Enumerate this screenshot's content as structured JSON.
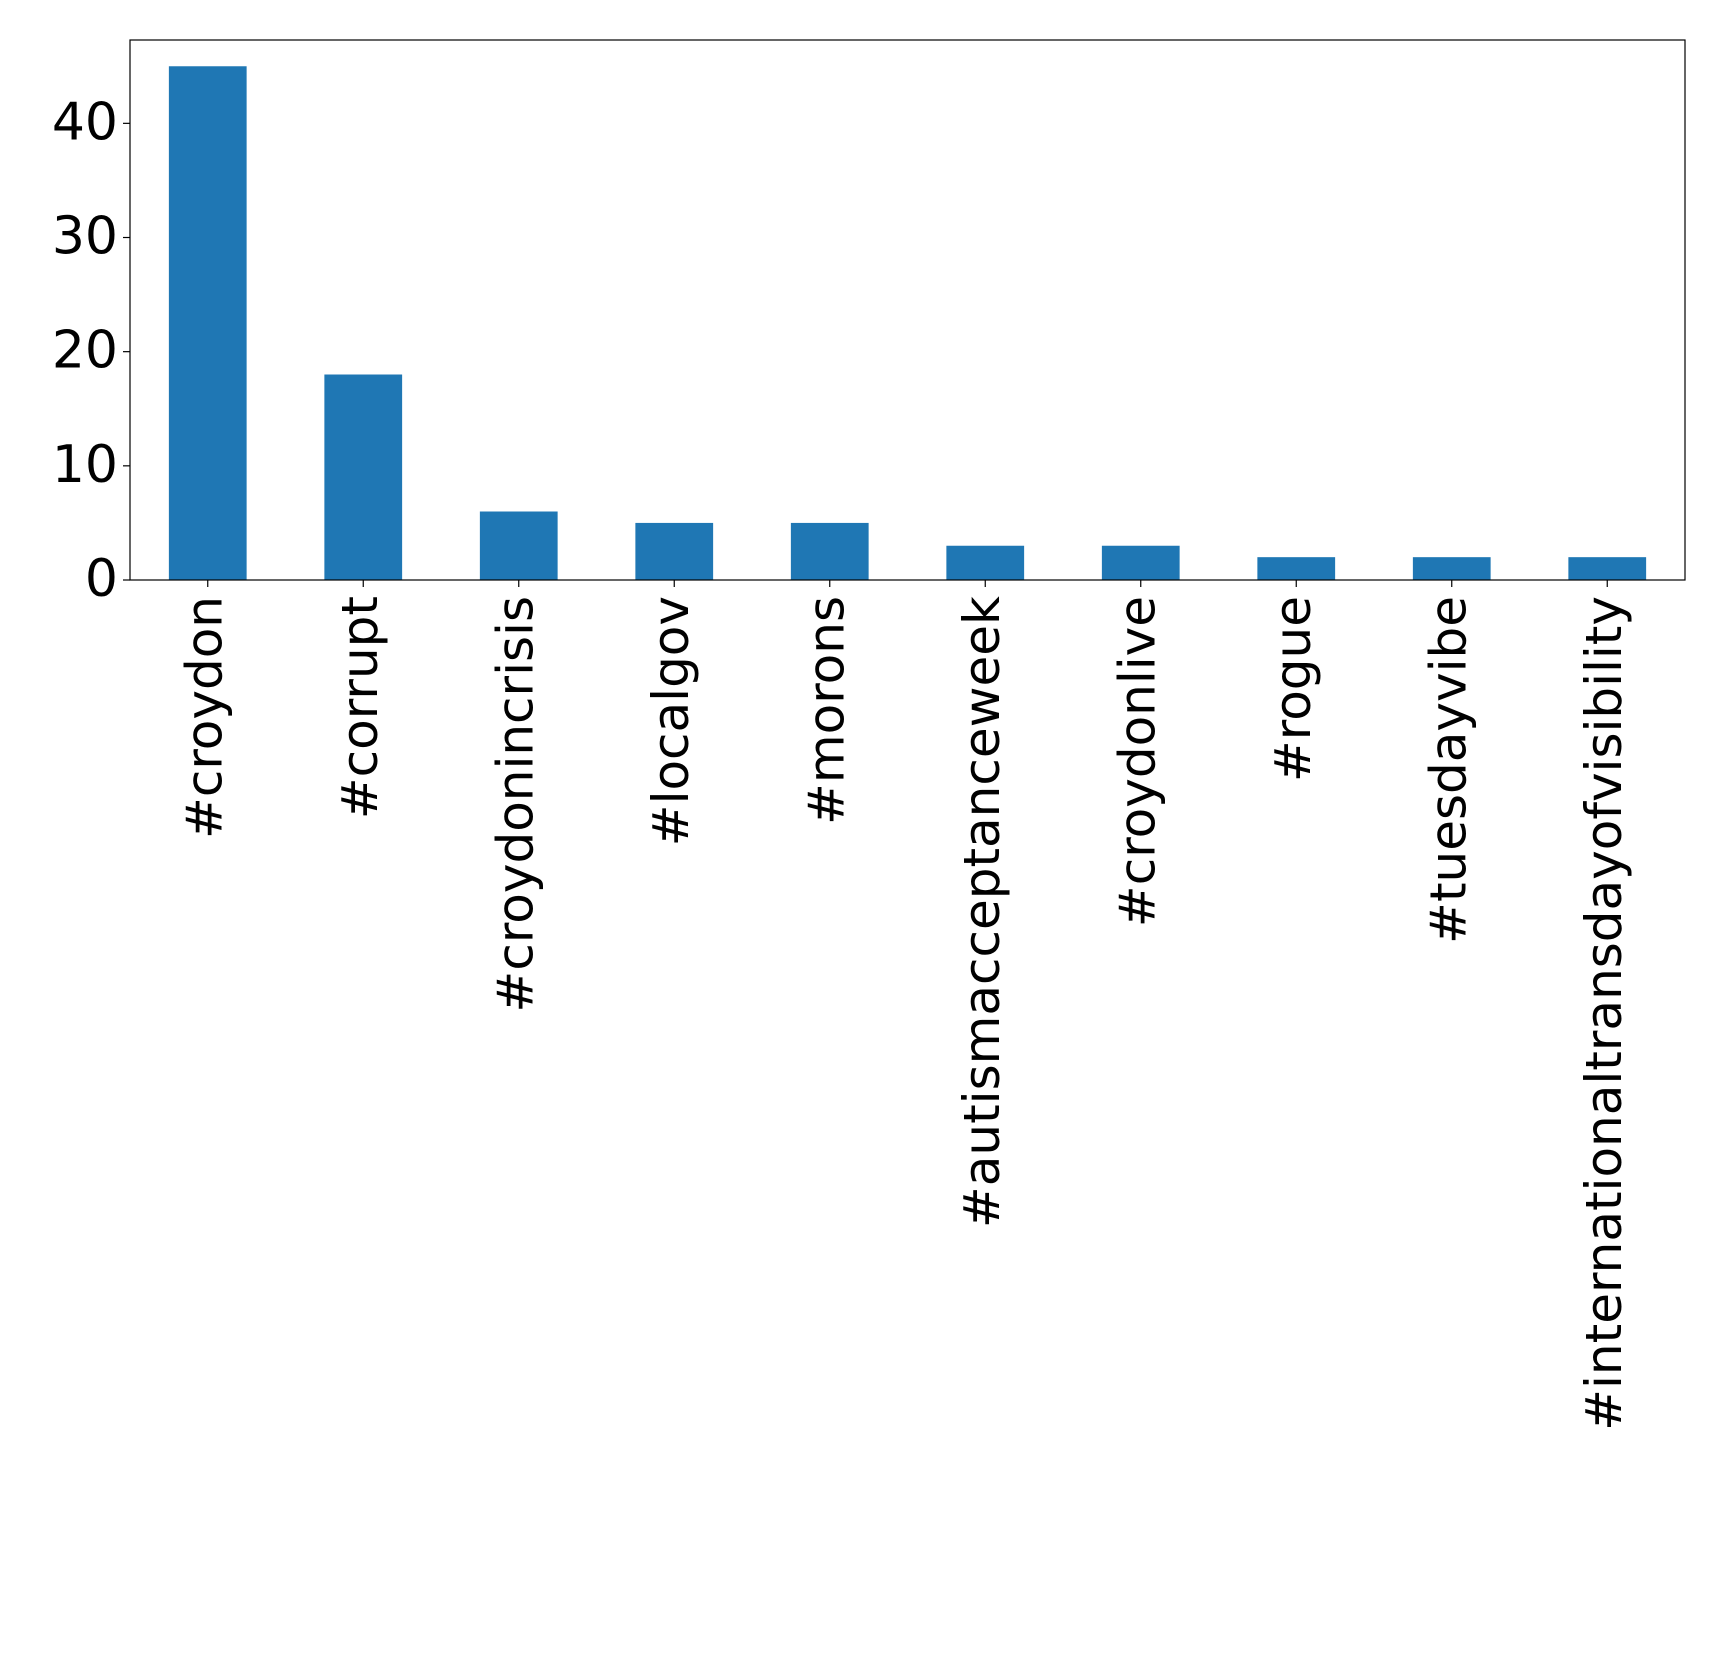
{
  "chart_data": {
    "type": "bar",
    "title": "",
    "xlabel": "",
    "ylabel": "",
    "categories": [
      "#croydon",
      "#corrupt",
      "#croydonincrisis",
      "#localgov",
      "#morons",
      "#autismacceptanceweek",
      "#croydonlive",
      "#rogue",
      "#tuesdayvibe",
      "#internationaltransdayofvisibility"
    ],
    "values": [
      45,
      18,
      6,
      5,
      5,
      3,
      3,
      2,
      2,
      2
    ],
    "ylim": [
      0,
      47.3
    ],
    "yticks": [
      0,
      10,
      20,
      30,
      40
    ],
    "bar_color": "#1f77b4",
    "grid": false,
    "legend": "none"
  }
}
